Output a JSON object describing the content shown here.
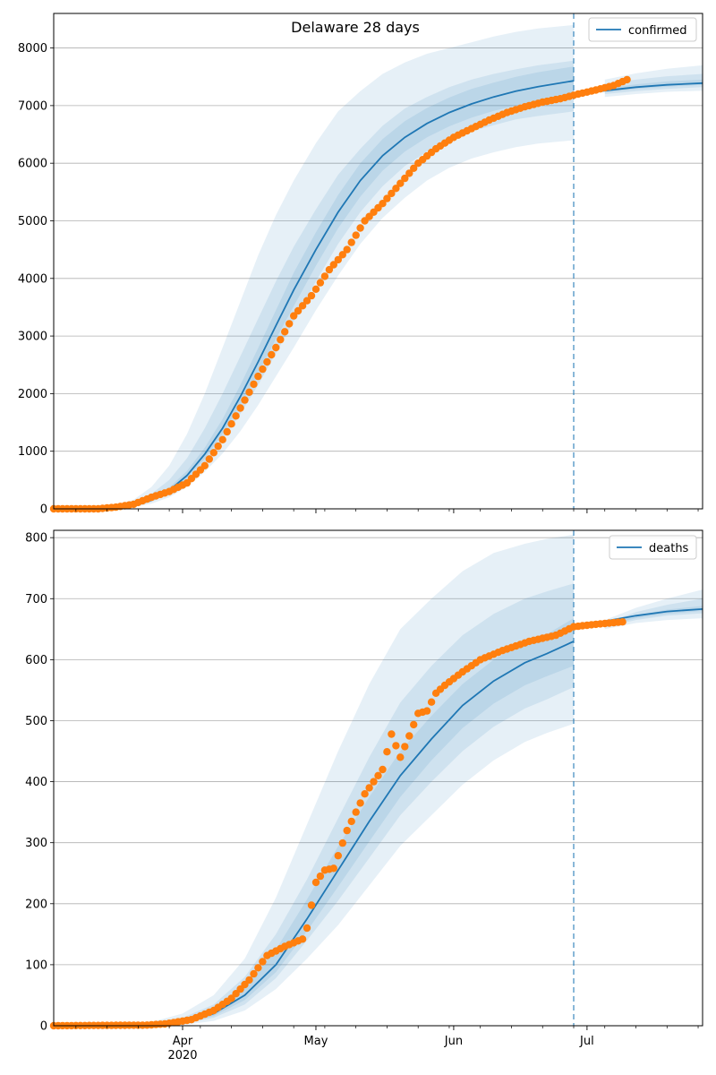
{
  "figure_title": "Delaware 28 days",
  "chart_data": [
    {
      "type": "line",
      "name": "confirmed-panel",
      "legend": "confirmed",
      "legend_position": "top-right",
      "grid": "y",
      "x_domain": [
        "2020-03-03",
        "2020-07-27"
      ],
      "forecast_start": "2020-06-28",
      "ylim": [
        0,
        8600
      ],
      "yticks": [
        0,
        1000,
        2000,
        3000,
        4000,
        5000,
        6000,
        7000,
        8000
      ],
      "colors": {
        "line": "#1f77b4",
        "band": "#1f77b4",
        "points": "#ff7f0e"
      },
      "model": {
        "x": [
          "2020-03-03",
          "2020-03-10",
          "2020-03-17",
          "2020-03-21",
          "2020-03-25",
          "2020-03-29",
          "2020-04-02",
          "2020-04-06",
          "2020-04-10",
          "2020-04-14",
          "2020-04-18",
          "2020-04-22",
          "2020-04-26",
          "2020-05-01",
          "2020-05-06",
          "2020-05-11",
          "2020-05-16",
          "2020-05-21",
          "2020-05-26",
          "2020-05-31",
          "2020-06-05",
          "2020-06-10",
          "2020-06-15",
          "2020-06-20",
          "2020-06-28",
          "2020-07-05",
          "2020-07-12",
          "2020-07-19",
          "2020-07-27"
        ],
        "median": [
          0,
          5,
          20,
          60,
          150,
          320,
          580,
          950,
          1400,
          1950,
          2550,
          3180,
          3800,
          4500,
          5150,
          5700,
          6130,
          6450,
          6690,
          6880,
          7030,
          7150,
          7250,
          7330,
          7430,
          7260,
          7320,
          7360,
          7390
        ],
        "bands": [
          {
            "lo": [
              0,
              0,
              5,
              30,
              90,
              200,
              380,
              640,
              960,
              1350,
              1800,
              2300,
              2800,
              3450,
              4050,
              4600,
              5050,
              5400,
              5700,
              5920,
              6080,
              6190,
              6280,
              6340,
              6400,
              7150,
              7200,
              7240,
              7260
            ],
            "hi": [
              0,
              15,
              60,
              160,
              380,
              750,
              1300,
              2000,
              2800,
              3600,
              4400,
              5100,
              5700,
              6350,
              6900,
              7250,
              7550,
              7750,
              7900,
              8000,
              8100,
              8200,
              8280,
              8340,
              8400,
              7450,
              7560,
              7640,
              7700
            ]
          },
          {
            "lo": [
              0,
              2,
              10,
              45,
              120,
              260,
              480,
              800,
              1200,
              1650,
              2150,
              2700,
              3250,
              3950,
              4600,
              5150,
              5600,
              5950,
              6200,
              6400,
              6550,
              6660,
              6760,
              6820,
              6900,
              7200,
              7250,
              7290,
              7320
            ],
            "hi": [
              0,
              10,
              40,
              110,
              260,
              500,
              880,
              1400,
              2000,
              2650,
              3300,
              3950,
              4550,
              5200,
              5800,
              6250,
              6650,
              6950,
              7150,
              7320,
              7450,
              7550,
              7630,
              7700,
              7780,
              7380,
              7450,
              7510,
              7550
            ]
          },
          {
            "lo": [
              0,
              3,
              15,
              52,
              135,
              290,
              530,
              870,
              1300,
              1800,
              2350,
              2950,
              3520,
              4220,
              4870,
              5420,
              5870,
              6200,
              6450,
              6640,
              6790,
              6910,
              7000,
              7070,
              7160,
              7230,
              7290,
              7330,
              7360
            ],
            "hi": [
              0,
              7,
              27,
              75,
              180,
              370,
              660,
              1060,
              1560,
              2150,
              2790,
              3450,
              4100,
              4800,
              5450,
              6000,
              6420,
              6730,
              6960,
              7140,
              7290,
              7400,
              7500,
              7580,
              7680,
              7300,
              7370,
              7420,
              7450
            ]
          }
        ],
        "forecast_x": [
          "2020-06-28",
          "2020-07-05",
          "2020-07-12",
          "2020-07-19",
          "2020-07-27"
        ],
        "forecast": [
          7180,
          7260,
          7320,
          7360,
          7390
        ]
      },
      "observed": {
        "x": [
          "2020-03-03",
          "2020-03-13",
          "2020-03-17",
          "2020-03-21",
          "2020-03-25",
          "2020-03-29",
          "2020-04-02",
          "2020-04-06",
          "2020-04-10",
          "2020-04-14",
          "2020-04-18",
          "2020-04-22",
          "2020-04-26",
          "2020-04-30",
          "2020-05-04",
          "2020-05-08",
          "2020-05-12",
          "2020-05-16",
          "2020-05-20",
          "2020-05-24",
          "2020-05-28",
          "2020-06-01",
          "2020-06-05",
          "2020-06-09",
          "2020-06-13",
          "2020-06-17",
          "2020-06-21",
          "2020-06-25",
          "2020-06-29",
          "2020-07-03",
          "2020-07-07",
          "2020-07-10"
        ],
        "y": [
          0,
          0,
          30,
          80,
          200,
          300,
          450,
          750,
          1200,
          1750,
          2300,
          2800,
          3350,
          3700,
          4150,
          4500,
          5000,
          5300,
          5650,
          6000,
          6250,
          6450,
          6600,
          6750,
          6880,
          6980,
          7060,
          7120,
          7200,
          7270,
          7350,
          7450
        ]
      }
    },
    {
      "type": "line",
      "name": "deaths-panel",
      "legend": "deaths",
      "legend_position": "top-right",
      "grid": "y",
      "x_domain": [
        "2020-03-03",
        "2020-07-27"
      ],
      "x_ticks": [
        "Apr\n2020",
        "May",
        "Jun",
        "Jul"
      ],
      "forecast_start": "2020-06-28",
      "ylim": [
        0,
        812
      ],
      "yticks": [
        0,
        100,
        200,
        300,
        400,
        500,
        600,
        700,
        800
      ],
      "colors": {
        "line": "#1f77b4",
        "band": "#1f77b4",
        "points": "#ff7f0e"
      },
      "model": {
        "x": [
          "2020-03-03",
          "2020-03-15",
          "2020-03-25",
          "2020-04-01",
          "2020-04-08",
          "2020-04-15",
          "2020-04-22",
          "2020-04-29",
          "2020-05-06",
          "2020-05-13",
          "2020-05-20",
          "2020-05-27",
          "2020-06-03",
          "2020-06-10",
          "2020-06-17",
          "2020-06-22",
          "2020-06-28",
          "2020-07-05",
          "2020-07-12",
          "2020-07-19",
          "2020-07-27"
        ],
        "median": [
          0,
          0,
          1,
          5,
          20,
          50,
          100,
          175,
          255,
          335,
          410,
          470,
          525,
          565,
          595,
          610,
          630,
          655,
          670,
          678,
          683
        ],
        "bands": [
          {
            "lo": [
              0,
              0,
              0,
              1,
              8,
              25,
              60,
              110,
              165,
              230,
              295,
              345,
              395,
              435,
              465,
              480,
              495,
              650,
              660,
              665,
              668
            ],
            "hi": [
              0,
              2,
              6,
              20,
              50,
              110,
              210,
              330,
              450,
              560,
              650,
              700,
              745,
              775,
              790,
              798,
              805,
              665,
              685,
              700,
              715
            ]
          },
          {
            "lo": [
              0,
              0,
              0,
              3,
              13,
              35,
              78,
              140,
              205,
              275,
              345,
              400,
              450,
              490,
              520,
              535,
              555,
              653,
              665,
              672,
              676
            ],
            "hi": [
              0,
              1,
              4,
              13,
              35,
              80,
              150,
              240,
              340,
              440,
              530,
              590,
              640,
              675,
              700,
              712,
              725,
              660,
              678,
              690,
              700
            ]
          },
          {
            "lo": [
              0,
              0,
              1,
              4,
              16,
              42,
              88,
              155,
              228,
              302,
              375,
              435,
              488,
              528,
              558,
              573,
              590,
              655,
              668,
              675,
              680
            ],
            "hi": [
              0,
              1,
              2,
              8,
              27,
              63,
              125,
              207,
              294,
              375,
              450,
              508,
              560,
              600,
              628,
              642,
              668,
              658,
              673,
              682,
              688
            ]
          }
        ],
        "forecast_x": [
          "2020-06-28",
          "2020-07-05",
          "2020-07-12",
          "2020-07-19",
          "2020-07-27"
        ],
        "forecast": [
          654,
          663,
          672,
          679,
          683
        ]
      },
      "observed": {
        "x": [
          "2020-03-03",
          "2020-03-24",
          "2020-03-28",
          "2020-04-03",
          "2020-04-08",
          "2020-04-12",
          "2020-04-16",
          "2020-04-20",
          "2020-04-24",
          "2020-04-28",
          "2020-04-29",
          "2020-05-01",
          "2020-05-03",
          "2020-05-05",
          "2020-05-08",
          "2020-05-12",
          "2020-05-14",
          "2020-05-16",
          "2020-05-18",
          "2020-05-20",
          "2020-05-22",
          "2020-05-24",
          "2020-05-26",
          "2020-05-28",
          "2020-05-30",
          "2020-06-03",
          "2020-06-07",
          "2020-06-12",
          "2020-06-18",
          "2020-06-24",
          "2020-06-28",
          "2020-07-03",
          "2020-07-09"
        ],
        "y": [
          0,
          1,
          3,
          10,
          25,
          45,
          75,
          115,
          130,
          142,
          160,
          235,
          255,
          258,
          320,
          380,
          400,
          420,
          478,
          440,
          475,
          512,
          516,
          545,
          558,
          580,
          600,
          615,
          630,
          640,
          654,
          658,
          662
        ]
      }
    }
  ]
}
